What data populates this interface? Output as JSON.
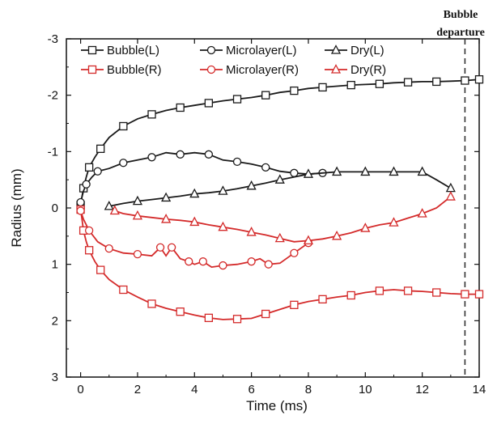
{
  "chart_data": {
    "type": "line",
    "xlabel": "Time (ms)",
    "ylabel": "Radius (mm)",
    "xlim": [
      -0.5,
      14
    ],
    "ylim": [
      -3,
      3
    ],
    "y_inverted": true,
    "xticks": [
      0,
      2,
      4,
      6,
      8,
      10,
      12,
      14
    ],
    "yticks": [
      -3,
      -2,
      -1,
      0,
      1,
      2,
      3
    ],
    "grid": false,
    "legend_placement": "top",
    "annotation": {
      "line1": "Bubble",
      "line2": "departure",
      "x": 13.5
    },
    "colors": {
      "L": "#1a1a1a",
      "R": "#d42a2a",
      "departure_line": "#333333"
    },
    "series": [
      {
        "name": "Bubble(L)",
        "side": "L",
        "marker": "square",
        "x": [
          0,
          0.05,
          0.1,
          0.2,
          0.3,
          0.5,
          0.7,
          1,
          1.5,
          2,
          2.5,
          3,
          3.5,
          4,
          4.5,
          5,
          5.5,
          6,
          6.5,
          7,
          7.5,
          8,
          8.5,
          9,
          9.5,
          10,
          10.5,
          11,
          11.5,
          12,
          12.5,
          13,
          13.5,
          14
        ],
        "y": [
          -0.05,
          -0.2,
          -0.35,
          -0.55,
          -0.72,
          -0.9,
          -1.05,
          -1.25,
          -1.45,
          -1.58,
          -1.66,
          -1.73,
          -1.78,
          -1.82,
          -1.86,
          -1.9,
          -1.93,
          -1.96,
          -2.0,
          -2.05,
          -2.08,
          -2.12,
          -2.14,
          -2.16,
          -2.18,
          -2.19,
          -2.2,
          -2.22,
          -2.23,
          -2.24,
          -2.24,
          -2.25,
          -2.26,
          -2.28
        ]
      },
      {
        "name": "Microlayer(L)",
        "side": "L",
        "marker": "circle",
        "x": [
          0,
          0.1,
          0.2,
          0.4,
          0.6,
          1,
          1.5,
          2,
          2.5,
          3,
          3.5,
          4,
          4.5,
          5,
          5.5,
          6,
          6.5,
          7,
          7.5,
          8,
          8.5
        ],
        "y": [
          -0.1,
          -0.3,
          -0.42,
          -0.55,
          -0.65,
          -0.7,
          -0.8,
          -0.85,
          -0.9,
          -0.98,
          -0.95,
          -0.98,
          -0.95,
          -0.85,
          -0.82,
          -0.78,
          -0.72,
          -0.65,
          -0.62,
          -0.6,
          -0.62
        ]
      },
      {
        "name": "Dry(L)",
        "side": "L",
        "marker": "triangle",
        "x": [
          1,
          1.5,
          2,
          2.5,
          3,
          3.5,
          4,
          4.5,
          5,
          5.5,
          6,
          6.5,
          7,
          7.5,
          8,
          8.5,
          9,
          9.5,
          10,
          10.5,
          11,
          11.5,
          12,
          12.5,
          13
        ],
        "y": [
          -0.03,
          -0.08,
          -0.12,
          -0.15,
          -0.18,
          -0.21,
          -0.25,
          -0.27,
          -0.3,
          -0.34,
          -0.39,
          -0.44,
          -0.5,
          -0.55,
          -0.6,
          -0.62,
          -0.64,
          -0.64,
          -0.64,
          -0.64,
          -0.64,
          -0.64,
          -0.64,
          -0.5,
          -0.35
        ]
      },
      {
        "name": "Bubble(R)",
        "side": "R",
        "marker": "square",
        "x": [
          0,
          0.05,
          0.1,
          0.2,
          0.3,
          0.5,
          0.7,
          1,
          1.5,
          2,
          2.5,
          3,
          3.5,
          4,
          4.5,
          5,
          5.5,
          6,
          6.5,
          7,
          7.5,
          8,
          8.5,
          9,
          9.5,
          10,
          10.5,
          11,
          11.5,
          12,
          12.5,
          13,
          13.5,
          14
        ],
        "y": [
          0.03,
          0.2,
          0.4,
          0.6,
          0.75,
          0.95,
          1.1,
          1.27,
          1.45,
          1.58,
          1.7,
          1.78,
          1.84,
          1.9,
          1.95,
          1.98,
          1.97,
          1.96,
          1.88,
          1.8,
          1.72,
          1.66,
          1.62,
          1.58,
          1.55,
          1.5,
          1.47,
          1.45,
          1.47,
          1.48,
          1.5,
          1.52,
          1.53,
          1.53
        ]
      },
      {
        "name": "Microlayer(R)",
        "side": "R",
        "marker": "circle",
        "x": [
          0,
          0.1,
          0.3,
          0.6,
          1,
          1.5,
          2,
          2.5,
          2.8,
          3,
          3.2,
          3.5,
          3.8,
          4,
          4.3,
          4.6,
          5,
          5.5,
          6,
          6.3,
          6.6,
          7,
          7.5,
          8
        ],
        "y": [
          0.05,
          0.2,
          0.4,
          0.6,
          0.72,
          0.8,
          0.82,
          0.85,
          0.7,
          0.85,
          0.7,
          0.9,
          0.95,
          1.0,
          0.95,
          1.05,
          1.02,
          1.0,
          0.95,
          0.9,
          1.0,
          0.98,
          0.8,
          0.62
        ]
      },
      {
        "name": "Dry(R)",
        "side": "R",
        "marker": "triangle",
        "x": [
          1.2,
          1.5,
          2,
          2.5,
          3,
          3.5,
          4,
          4.5,
          5,
          5.5,
          6,
          6.5,
          7,
          7.5,
          8,
          8.5,
          9,
          9.5,
          10,
          10.5,
          11,
          11.5,
          12,
          12.5,
          13
        ],
        "y": [
          0.05,
          0.1,
          0.14,
          0.17,
          0.2,
          0.22,
          0.25,
          0.3,
          0.34,
          0.38,
          0.43,
          0.48,
          0.54,
          0.6,
          0.58,
          0.55,
          0.5,
          0.44,
          0.36,
          0.3,
          0.26,
          0.18,
          0.1,
          0.0,
          -0.2
        ]
      }
    ]
  }
}
